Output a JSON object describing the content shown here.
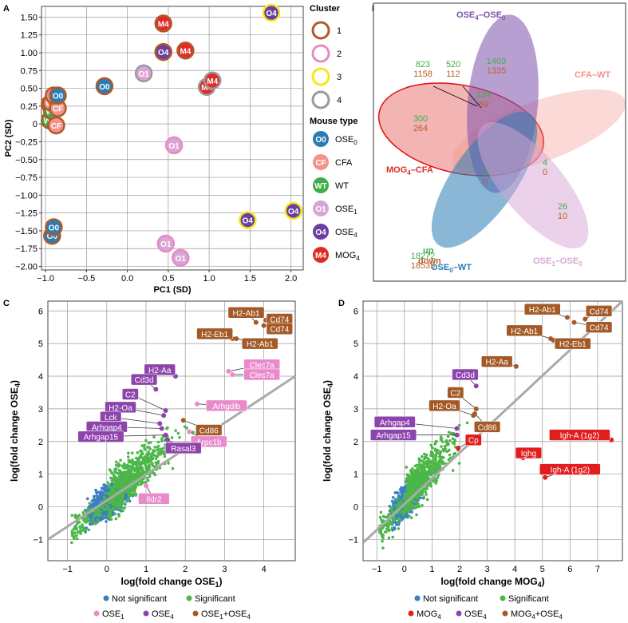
{
  "colors": {
    "o0": "#2b7bb5",
    "cf": "#f2938a",
    "wt": "#3fae49",
    "o1": "#d7a6d6",
    "o4": "#6b3fa0",
    "m4": "#de2c26",
    "c1": "#b05a28",
    "c2": "#e68bc2",
    "c3": "#f6e81c",
    "c4": "#9a9a9a",
    "blue": "#3a7fc6",
    "green": "#4cb748",
    "pink": "#e98bcb",
    "purple": "#8e44ad",
    "brown": "#a35a27",
    "red": "#e01e1e",
    "up": "#3fae49",
    "down": "#b8602e"
  },
  "panels": {
    "a": {
      "letter": "A"
    },
    "b": {
      "letter": "B"
    },
    "c": {
      "letter": "C"
    },
    "d": {
      "letter": "D"
    }
  },
  "legend_a": {
    "cluster_title": "Cluster",
    "clusters": [
      "1",
      "2",
      "3",
      "4"
    ],
    "mouse_title": "Mouse type",
    "types": [
      {
        "abbr": "O0",
        "label": "OSE",
        "sub": "0"
      },
      {
        "abbr": "CF",
        "label": "CFA",
        "sub": ""
      },
      {
        "abbr": "WT",
        "label": "WT",
        "sub": ""
      },
      {
        "abbr": "O1",
        "label": "OSE",
        "sub": "1"
      },
      {
        "abbr": "O4",
        "label": "OSE",
        "sub": "4"
      },
      {
        "abbr": "M4",
        "label": "MOG",
        "sub": "4"
      }
    ]
  },
  "venn": {
    "labels": {
      "ose4_ose0": {
        "main": "OSE",
        "sub1": "4",
        "dash": "–OSE",
        "sub2": "0"
      },
      "cfa_wt": "CFA–WT",
      "mog4_cfa": {
        "main": "MOG",
        "sub1": "4",
        "dash": "–CFA",
        "sub2": ""
      },
      "ose0_wt": {
        "main": "OSE",
        "sub1": "0",
        "dash": "–WT",
        "sub2": ""
      },
      "ose1_ose0": {
        "main": "OSE",
        "sub1": "1",
        "dash": "–OSE",
        "sub2": "0"
      }
    },
    "key_up": "up",
    "key_down": "down",
    "counts": [
      {
        "up": "823",
        "down": "1158"
      },
      {
        "up": "520",
        "down": "112"
      },
      {
        "up": "1403",
        "down": "1335"
      },
      {
        "up": "134",
        "down": "69"
      },
      {
        "up": "300",
        "down": "264"
      },
      {
        "up": "4",
        "down": "0"
      },
      {
        "up": "1",
        "down": "0"
      },
      {
        "up": "26",
        "down": "10"
      },
      {
        "up": "18272",
        "down": "18535"
      }
    ]
  },
  "legend_c": {
    "not_sig": "Not significant",
    "sig": "Significant",
    "ose1": {
      "main": "OSE",
      "sub": "1"
    },
    "ose4": {
      "main": "OSE",
      "sub": "4"
    },
    "both": {
      "main": "OSE",
      "sub1": "1",
      "mid": "+OSE",
      "sub2": "4"
    }
  },
  "legend_d": {
    "not_sig": "Not significant",
    "sig": "Significant",
    "mog4": {
      "main": "MOG",
      "sub": "4"
    },
    "ose4": {
      "main": "OSE",
      "sub": "4"
    },
    "both": {
      "main": "MOG",
      "sub1": "4",
      "mid": "+OSE",
      "sub2": "4"
    }
  },
  "chart_data": [
    {
      "id": "A",
      "type": "scatter",
      "title": "",
      "xlabel": "PC1 (SD)",
      "ylabel": "PC2 (SD)",
      "xlim": [
        -1.05,
        2.15
      ],
      "ylim": [
        -2.05,
        1.65
      ],
      "xticks": [
        -1.0,
        -0.5,
        0.0,
        0.5,
        1.0,
        1.5,
        2.0
      ],
      "yticks": [
        1.5,
        1.25,
        1.0,
        0.75,
        0.5,
        0.25,
        0.0,
        -0.25,
        -0.5,
        -0.75,
        -1.0,
        -1.25,
        -1.5,
        -1.75,
        -2.0
      ],
      "xtick_labels": [
        "−1.0",
        "−0.5",
        "0.0",
        "0.5",
        "1.0",
        "1.5",
        "2.0"
      ],
      "ytick_labels": [
        "1.50",
        "1.25",
        "1.00",
        "0.75",
        "0.50",
        "0.25",
        "0",
        "−0.25",
        "−0.50",
        "−0.75",
        "−1.00",
        "−1.25",
        "−1.50",
        "−1.75",
        "−2.00"
      ],
      "points": [
        {
          "x": -0.95,
          "y": 0.05,
          "type": "WT",
          "cluster": 1
        },
        {
          "x": -0.95,
          "y": 0.28,
          "type": "WT",
          "cluster": 1
        },
        {
          "x": -0.92,
          "y": 0.18,
          "type": "WT",
          "cluster": 1
        },
        {
          "x": -0.93,
          "y": 0.3,
          "type": "CF",
          "cluster": 1
        },
        {
          "x": -0.85,
          "y": 0.22,
          "type": "CF",
          "cluster": 1
        },
        {
          "x": -0.87,
          "y": -0.02,
          "type": "CF",
          "cluster": 1
        },
        {
          "x": -0.9,
          "y": 0.4,
          "type": "CF",
          "cluster": 1
        },
        {
          "x": -0.85,
          "y": 0.4,
          "type": "O0",
          "cluster": 1
        },
        {
          "x": -0.28,
          "y": 0.53,
          "type": "O0",
          "cluster": 1
        },
        {
          "x": -0.92,
          "y": -1.57,
          "type": "O0",
          "cluster": 1
        },
        {
          "x": -0.9,
          "y": -1.45,
          "type": "O0",
          "cluster": 1
        },
        {
          "x": 0.2,
          "y": 0.71,
          "type": "O1",
          "cluster": 4
        },
        {
          "x": 0.57,
          "y": -0.3,
          "type": "O1",
          "cluster": 2
        },
        {
          "x": 0.47,
          "y": -1.68,
          "type": "O1",
          "cluster": 2
        },
        {
          "x": 0.65,
          "y": -1.88,
          "type": "O1",
          "cluster": 2
        },
        {
          "x": 0.44,
          "y": 1.01,
          "type": "O4",
          "cluster": 1
        },
        {
          "x": 1.47,
          "y": -1.35,
          "type": "O4",
          "cluster": 3
        },
        {
          "x": 1.76,
          "y": 1.56,
          "type": "O4",
          "cluster": 3
        },
        {
          "x": 2.03,
          "y": -1.22,
          "type": "O4",
          "cluster": 3
        },
        {
          "x": 0.44,
          "y": 1.41,
          "type": "M4",
          "cluster": 1
        },
        {
          "x": 0.71,
          "y": 1.03,
          "type": "M4",
          "cluster": 1
        },
        {
          "x": 0.97,
          "y": 0.52,
          "type": "M4",
          "cluster": 4
        },
        {
          "x": 1.04,
          "y": 0.61,
          "type": "M4",
          "cluster": 4
        }
      ]
    },
    {
      "id": "C",
      "type": "scatter",
      "xlabel": "log(fold change OSE1)",
      "ylabel": "log(fold change OSE4)",
      "xlim": [
        -1.5,
        4.8
      ],
      "ylim": [
        -1.65,
        6.3
      ],
      "xticks": [
        -1,
        0,
        1,
        2,
        3,
        4
      ],
      "yticks": [
        -1,
        0,
        1,
        2,
        3,
        4,
        5,
        6
      ],
      "xtick_labels": [
        "−1",
        "0",
        "1",
        "2",
        "3",
        "4"
      ],
      "ytick_labels": [
        "−1",
        "0",
        "1",
        "2",
        "3",
        "4",
        "5",
        "6"
      ],
      "diagonal": {
        "x0": -1.5,
        "y0": -1.0,
        "x1": 4.8,
        "y1": 4.0
      },
      "highlights": [
        {
          "gene": "H2-Ab1",
          "x": 3.8,
          "y": 5.65,
          "cat": "both",
          "lx": 3.55,
          "ly": 5.95
        },
        {
          "gene": "Cd74",
          "x": 4.05,
          "y": 5.72,
          "cat": "both",
          "lx": 4.4,
          "ly": 5.75
        },
        {
          "gene": "Cd74",
          "x": 4.0,
          "y": 5.55,
          "cat": "both",
          "lx": 4.4,
          "ly": 5.45
        },
        {
          "gene": "H2-Eb1",
          "x": 3.2,
          "y": 5.15,
          "cat": "both",
          "lx": 2.75,
          "ly": 5.3
        },
        {
          "gene": "H2-Ab1",
          "x": 3.3,
          "y": 5.15,
          "cat": "both",
          "lx": 3.9,
          "ly": 5.0
        },
        {
          "gene": "H2-Aa",
          "x": 1.75,
          "y": 4.0,
          "cat": "ose4",
          "lx": 1.35,
          "ly": 4.2
        },
        {
          "gene": "Cd3d",
          "x": 1.25,
          "y": 3.6,
          "cat": "ose4",
          "lx": 0.95,
          "ly": 3.9
        },
        {
          "gene": "Clec7a",
          "x": 3.1,
          "y": 4.15,
          "cat": "ose1",
          "lx": 3.95,
          "ly": 4.35
        },
        {
          "gene": "Clec7a",
          "x": 3.2,
          "y": 4.05,
          "cat": "ose1",
          "lx": 3.95,
          "ly": 4.05
        },
        {
          "gene": "C2",
          "x": 1.5,
          "y": 2.95,
          "cat": "ose4",
          "lx": 0.6,
          "ly": 3.45
        },
        {
          "gene": "H2-Oa",
          "x": 1.45,
          "y": 2.8,
          "cat": "ose4",
          "lx": 0.35,
          "ly": 3.05
        },
        {
          "gene": "Arhgdib",
          "x": 2.3,
          "y": 3.15,
          "cat": "ose1",
          "lx": 3.05,
          "ly": 3.1
        },
        {
          "gene": "Lck",
          "x": 1.35,
          "y": 2.55,
          "cat": "ose4",
          "lx": 0.1,
          "ly": 2.75
        },
        {
          "gene": "Arhgap4",
          "x": 1.4,
          "y": 2.4,
          "cat": "ose4",
          "lx": 0.0,
          "ly": 2.45
        },
        {
          "gene": "Cd86",
          "x": 1.95,
          "y": 2.65,
          "cat": "both",
          "lx": 2.6,
          "ly": 2.35
        },
        {
          "gene": "Arhgap15",
          "x": 1.5,
          "y": 2.2,
          "cat": "ose4",
          "lx": -0.15,
          "ly": 2.15
        },
        {
          "gene": "Arpc1b",
          "x": 2.1,
          "y": 2.3,
          "cat": "ose1",
          "lx": 2.6,
          "ly": 2.0
        },
        {
          "gene": "Rasal3",
          "x": 1.55,
          "y": 2.05,
          "cat": "ose4",
          "lx": 1.95,
          "ly": 1.8
        },
        {
          "gene": "Ildr2",
          "x": 1.0,
          "y": 0.65,
          "cat": "ose1",
          "lx": 1.2,
          "ly": 0.25
        }
      ]
    },
    {
      "id": "D",
      "type": "scatter",
      "xlabel": "log(fold change MOG4)",
      "ylabel": "log(fold change OSE4)",
      "xlim": [
        -1.5,
        7.9
      ],
      "ylim": [
        -1.65,
        6.3
      ],
      "xticks": [
        -1,
        0,
        1,
        2,
        3,
        4,
        5,
        6,
        7
      ],
      "yticks": [
        -1,
        0,
        1,
        2,
        3,
        4,
        5,
        6
      ],
      "xtick_labels": [
        "−1",
        "0",
        "1",
        "2",
        "3",
        "4",
        "5",
        "6",
        "7"
      ],
      "ytick_labels": [
        "−1",
        "0",
        "1",
        "2",
        "3",
        "4",
        "5",
        "6"
      ],
      "diagonal": {
        "x0": -1.5,
        "y0": -1.1,
        "x1": 7.9,
        "y1": 6.3
      },
      "highlights": [
        {
          "gene": "H2-Ab1",
          "x": 5.9,
          "y": 5.8,
          "cat": "both",
          "lx": 5.0,
          "ly": 6.05
        },
        {
          "gene": "Cd74",
          "x": 6.55,
          "y": 5.75,
          "cat": "both",
          "lx": 7.05,
          "ly": 6.0
        },
        {
          "gene": "Cd74",
          "x": 6.15,
          "y": 5.65,
          "cat": "both",
          "lx": 7.05,
          "ly": 5.5
        },
        {
          "gene": "H2-Ab1",
          "x": 5.3,
          "y": 5.15,
          "cat": "both",
          "lx": 4.35,
          "ly": 5.4
        },
        {
          "gene": "H2-Eb1",
          "x": 5.4,
          "y": 5.1,
          "cat": "both",
          "lx": 6.1,
          "ly": 5.0
        },
        {
          "gene": "H2-Aa",
          "x": 4.05,
          "y": 4.3,
          "cat": "both",
          "lx": 3.35,
          "ly": 4.45
        },
        {
          "gene": "Cd3d",
          "x": 2.6,
          "y": 3.7,
          "cat": "ose4",
          "lx": 2.2,
          "ly": 4.05
        },
        {
          "gene": "C2",
          "x": 2.6,
          "y": 3.0,
          "cat": "both",
          "lx": 1.85,
          "ly": 3.5
        },
        {
          "gene": "H2-Oa",
          "x": 2.5,
          "y": 2.8,
          "cat": "both",
          "lx": 1.45,
          "ly": 3.1
        },
        {
          "gene": "Cd86",
          "x": 2.55,
          "y": 2.85,
          "cat": "both",
          "lx": 3.0,
          "ly": 2.45
        },
        {
          "gene": "Arhgap4",
          "x": 1.9,
          "y": 2.4,
          "cat": "ose4",
          "lx": -0.35,
          "ly": 2.6
        },
        {
          "gene": "Arhgap15",
          "x": 1.9,
          "y": 2.2,
          "cat": "ose4",
          "lx": -0.4,
          "ly": 2.2
        },
        {
          "gene": "Cp",
          "x": 1.95,
          "y": 1.8,
          "cat": "mog4",
          "lx": 2.5,
          "ly": 2.05
        },
        {
          "gene": "Igh-A (1g2)",
          "x": 7.5,
          "y": 2.05,
          "cat": "mog4",
          "lx": 6.35,
          "ly": 2.2
        },
        {
          "gene": "Ighg",
          "x": 4.3,
          "y": 1.5,
          "cat": "mog4",
          "lx": 4.5,
          "ly": 1.65
        },
        {
          "gene": "Igh-A (1g2)",
          "x": 5.1,
          "y": 0.9,
          "cat": "mog4",
          "lx": 6.0,
          "ly": 1.15
        }
      ]
    }
  ]
}
